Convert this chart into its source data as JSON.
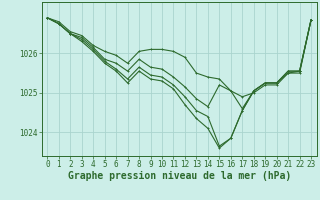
{
  "background_color": "#cceee8",
  "grid_color": "#aad4ce",
  "line_color": "#2d6a2d",
  "xlabel": "Graphe pression niveau de la mer (hPa)",
  "xlabel_fontsize": 7,
  "tick_fontsize": 5.5,
  "xlim": [
    -0.5,
    23.5
  ],
  "ylim": [
    1023.4,
    1027.3
  ],
  "yticks": [
    1024,
    1025,
    1026
  ],
  "xticks": [
    0,
    1,
    2,
    3,
    4,
    5,
    6,
    7,
    8,
    9,
    10,
    11,
    12,
    13,
    14,
    15,
    16,
    17,
    18,
    19,
    20,
    21,
    22,
    23
  ],
  "series": [
    [
      1026.9,
      1026.8,
      1026.55,
      1026.45,
      1026.2,
      1026.05,
      1025.95,
      1025.75,
      1026.05,
      1026.1,
      1026.1,
      1026.05,
      1025.9,
      1025.5,
      1025.4,
      1025.35,
      1025.05,
      1024.9,
      1025.0,
      1025.2,
      1025.2,
      1025.5,
      1025.5,
      1026.85
    ],
    [
      1026.9,
      1026.75,
      1026.5,
      1026.4,
      1026.15,
      1025.85,
      1025.75,
      1025.55,
      1025.85,
      1025.65,
      1025.6,
      1025.4,
      1025.15,
      1024.85,
      1024.65,
      1025.2,
      1025.05,
      1024.6,
      1025.05,
      1025.25,
      1025.25,
      1025.5,
      1025.55,
      1026.85
    ],
    [
      1026.9,
      1026.75,
      1026.5,
      1026.35,
      1026.1,
      1025.8,
      1025.6,
      1025.35,
      1025.65,
      1025.45,
      1025.4,
      1025.2,
      1024.9,
      1024.55,
      1024.4,
      1023.65,
      1023.85,
      1024.55,
      1025.05,
      1025.25,
      1025.25,
      1025.55,
      1025.55,
      1026.85
    ],
    [
      1026.9,
      1026.75,
      1026.5,
      1026.3,
      1026.05,
      1025.75,
      1025.55,
      1025.25,
      1025.55,
      1025.35,
      1025.3,
      1025.1,
      1024.7,
      1024.35,
      1024.1,
      1023.6,
      1023.85,
      1024.55,
      1025.05,
      1025.25,
      1025.25,
      1025.55,
      1025.55,
      1026.85
    ]
  ]
}
